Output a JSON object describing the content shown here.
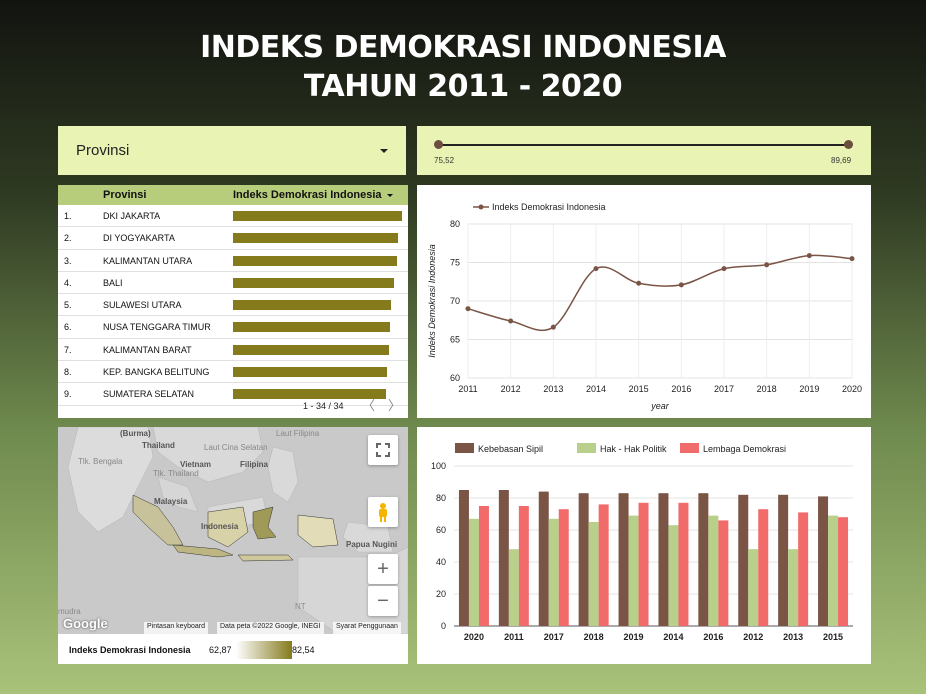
{
  "title": {
    "line1": "INDEKS DEMOKRASI INDONESIA",
    "line2": "TAHUN 2011 - 2020"
  },
  "filter": {
    "label": "Provinsi"
  },
  "slider": {
    "min_label": "75,52",
    "max_label": "89,69"
  },
  "table": {
    "headers": [
      "Provinsi",
      "Indeks Demokrasi Indonesia"
    ],
    "rows": [
      {
        "no": "1.",
        "prov": "DKI JAKARTA",
        "value": 1.0
      },
      {
        "no": "2.",
        "prov": "DI YOGYAKARTA",
        "value": 0.976
      },
      {
        "no": "3.",
        "prov": "KALIMANTAN UTARA",
        "value": 0.97
      },
      {
        "no": "4.",
        "prov": "BALI",
        "value": 0.955
      },
      {
        "no": "5.",
        "prov": "SULAWESI UTARA",
        "value": 0.935
      },
      {
        "no": "6.",
        "prov": "NUSA TENGGARA TIMUR",
        "value": 0.93
      },
      {
        "no": "7.",
        "prov": "KALIMANTAN BARAT",
        "value": 0.922
      },
      {
        "no": "8.",
        "prov": "KEP. BANGKA BELITUNG",
        "value": 0.912
      },
      {
        "no": "9.",
        "prov": "SUMATERA SELATAN",
        "value": 0.905
      }
    ],
    "pager": "1 - 34 / 34",
    "prev": "〈",
    "next": "〉"
  },
  "map": {
    "labels": [
      "Thailand",
      "Vietnam",
      "Filipina",
      "Malaysia",
      "Papua Nugini",
      "Indonesia",
      "(Burma)",
      "Laut Cina Selatan",
      "Laut Filipina",
      "Tlk. Bengala",
      "Tlk. Thailand",
      "NT",
      "mudra"
    ],
    "google": "Google",
    "footer_keyboard": "Pintasan keyboard",
    "footer_data": "Data peta ©2022 Google, INEGI",
    "footer_terms": "Syarat Penggunaan",
    "zoom_in": "+",
    "zoom_out": "−",
    "legend_name": "Indeks Demokrasi Indonesia",
    "legend_min": "62,87",
    "legend_max": "82,54",
    "colors": {
      "low": "#ffffff",
      "high": "#857a1c"
    }
  },
  "chart_data": [
    {
      "type": "line",
      "series": [
        {
          "name": "Indeks Demokrasi Indonesia",
          "x": [
            2011,
            2012,
            2013,
            2014,
            2015,
            2016,
            2017,
            2018,
            2019,
            2020
          ],
          "values": [
            69.0,
            67.4,
            66.6,
            74.2,
            72.3,
            72.1,
            74.2,
            74.7,
            75.9,
            75.5
          ]
        }
      ],
      "xlabel": "year",
      "ylabel": "Indeks Demokrasi Indonesia",
      "ylim": [
        60,
        80
      ],
      "yticks": [
        60,
        65,
        70,
        75,
        80
      ],
      "color": "#7a5546",
      "grid": true
    },
    {
      "type": "bar",
      "categories": [
        "2020",
        "2011",
        "2017",
        "2018",
        "2019",
        "2014",
        "2016",
        "2012",
        "2013",
        "2015"
      ],
      "series": [
        {
          "name": "Kebebasan Sipil",
          "color": "#7a5546",
          "values": [
            85,
            85,
            84,
            83,
            83,
            83,
            83,
            82,
            82,
            81
          ]
        },
        {
          "name": "Hak - Hak Politik",
          "color": "#b8d08a",
          "values": [
            67,
            48,
            67,
            65,
            69,
            63,
            69,
            48,
            48,
            69
          ]
        },
        {
          "name": "Lembaga Demokrasi",
          "color": "#f26b6b",
          "values": [
            75,
            75,
            73,
            76,
            77,
            77,
            66,
            73,
            71,
            68
          ]
        }
      ],
      "ylim": [
        0,
        100
      ],
      "yticks": [
        0,
        20,
        40,
        60,
        80,
        100
      ],
      "legend": "top",
      "grid": true
    }
  ]
}
